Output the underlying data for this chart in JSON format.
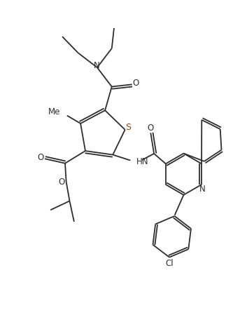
{
  "bg_color": "#ffffff",
  "line_color": "#2d2d2d",
  "sulfur_color": "#8B4513",
  "nitrogen_color": "#8B4513",
  "figsize": [
    3.23,
    4.76
  ],
  "dpi": 100,
  "xlim": [
    0,
    10
  ],
  "ylim": [
    0,
    14.76
  ]
}
